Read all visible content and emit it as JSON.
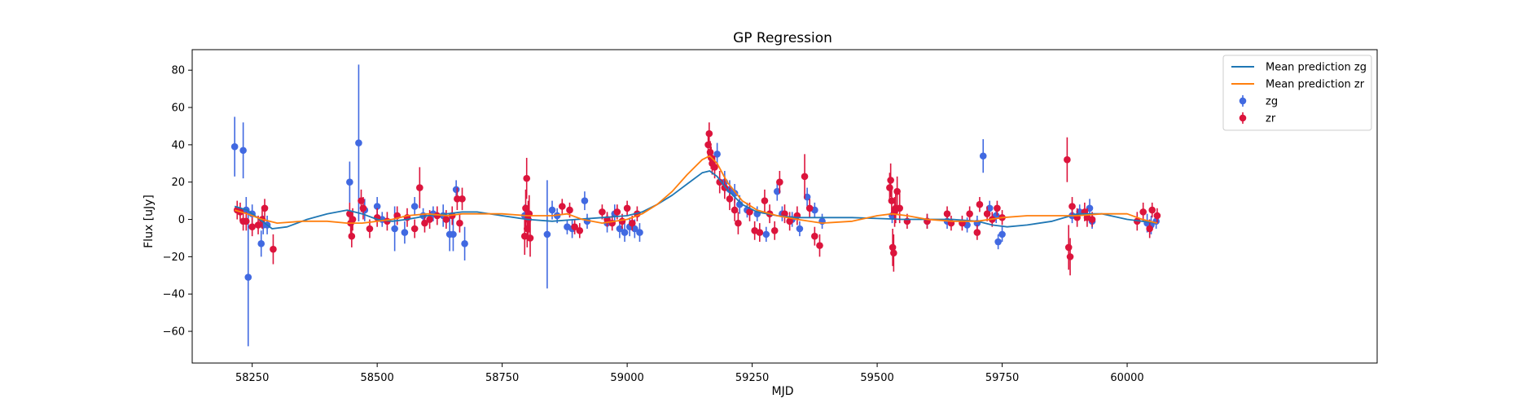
{
  "chart_data": {
    "type": "scatter",
    "title": "GP Regression",
    "xlabel": "MJD",
    "ylabel": "Flux [uJy]",
    "xlim": [
      58130,
      60500
    ],
    "ylim": [
      -77,
      91
    ],
    "xticks": [
      58250,
      58500,
      58750,
      59000,
      59250,
      59500,
      59750,
      60000
    ],
    "yticks": [
      -60,
      -40,
      -20,
      0,
      20,
      40,
      60,
      80
    ],
    "grid": false,
    "legend_position": "top-right",
    "legend": [
      {
        "label": "Mean prediction zg",
        "kind": "line",
        "color": "#1f77b4"
      },
      {
        "label": "Mean prediction zr",
        "kind": "line",
        "color": "#ff7f0e"
      },
      {
        "label": "zg",
        "kind": "errorbar",
        "color": "#4169e1"
      },
      {
        "label": "zr",
        "kind": "errorbar",
        "color": "#dc143c"
      }
    ],
    "lines": [
      {
        "name": "Mean prediction zg",
        "color": "#1f77b4",
        "x": [
          58215,
          58240,
          58265,
          58290,
          58320,
          58360,
          58400,
          58440,
          58470,
          58500,
          58530,
          58560,
          58600,
          58640,
          58670,
          58700,
          58750,
          58800,
          58850,
          58900,
          58950,
          59000,
          59030,
          59060,
          59090,
          59120,
          59150,
          59165,
          59180,
          59200,
          59230,
          59260,
          59300,
          59340,
          59400,
          59450,
          59500,
          59550,
          59600,
          59650,
          59700,
          59730,
          59760,
          59800,
          59850,
          59900,
          59950,
          60000,
          60030,
          60060
        ],
        "y": [
          7,
          5,
          0,
          -5,
          -4,
          0,
          3,
          5,
          3,
          0,
          -1,
          0,
          2,
          3,
          4,
          4,
          2,
          0,
          -1,
          0,
          1,
          2,
          4,
          8,
          13,
          19,
          25,
          26,
          23,
          16,
          8,
          4,
          2,
          1,
          1,
          1,
          0.5,
          0,
          0,
          0,
          -1,
          -3,
          -4,
          -3,
          -1,
          3,
          3,
          0,
          -1,
          -2
        ]
      },
      {
        "name": "Mean prediction zr",
        "color": "#ff7f0e",
        "x": [
          58215,
          58240,
          58270,
          58300,
          58350,
          58400,
          58440,
          58470,
          58500,
          58530,
          58560,
          58600,
          58640,
          58670,
          58700,
          58750,
          58800,
          58850,
          58880,
          58910,
          58950,
          59000,
          59030,
          59060,
          59090,
          59120,
          59150,
          59165,
          59180,
          59200,
          59230,
          59260,
          59300,
          59340,
          59390,
          59450,
          59500,
          59530,
          59560,
          59600,
          59650,
          59700,
          59750,
          59800,
          59850,
          59900,
          59950,
          60000,
          60030,
          60060
        ],
        "y": [
          5,
          3,
          0,
          -2,
          -1,
          -1,
          -2,
          -2,
          -1,
          0,
          2,
          3,
          2,
          3,
          3,
          3,
          2,
          2,
          3,
          0,
          -2,
          0,
          3,
          8,
          15,
          24,
          32,
          34,
          30,
          20,
          10,
          5,
          2,
          0,
          -2,
          -1,
          2,
          3,
          2,
          0,
          -1,
          -1,
          1,
          2,
          2,
          2,
          3,
          3,
          0,
          -2
        ]
      }
    ],
    "series": [
      {
        "name": "zg",
        "color": "#4169e1",
        "points": [
          [
            58215,
            39,
            16
          ],
          [
            58232,
            37,
            15
          ],
          [
            58238,
            5,
            7
          ],
          [
            58242,
            -31,
            37
          ],
          [
            58250,
            3,
            5
          ],
          [
            58268,
            -13,
            7
          ],
          [
            58272,
            -3,
            5
          ],
          [
            58280,
            -3,
            5
          ],
          [
            58445,
            20,
            11
          ],
          [
            58463,
            41,
            42
          ],
          [
            58475,
            5,
            6
          ],
          [
            58500,
            7,
            5
          ],
          [
            58510,
            0,
            4
          ],
          [
            58535,
            -5,
            12
          ],
          [
            58555,
            -7,
            6
          ],
          [
            58575,
            7,
            5
          ],
          [
            58592,
            2,
            4
          ],
          [
            58612,
            3,
            4
          ],
          [
            58632,
            2,
            6
          ],
          [
            58645,
            -8,
            9
          ],
          [
            58652,
            -8,
            9
          ],
          [
            58658,
            16,
            5
          ],
          [
            58675,
            -13,
            9
          ],
          [
            58795,
            2,
            6
          ],
          [
            58840,
            -8,
            29
          ],
          [
            58850,
            5,
            5
          ],
          [
            58860,
            2,
            4
          ],
          [
            58880,
            -4,
            4
          ],
          [
            58890,
            -5,
            5
          ],
          [
            58915,
            10,
            5
          ],
          [
            58920,
            -1,
            4
          ],
          [
            58960,
            -2,
            5
          ],
          [
            58975,
            3,
            5
          ],
          [
            58985,
            -5,
            5
          ],
          [
            58995,
            -7,
            5
          ],
          [
            59005,
            -4,
            5
          ],
          [
            59015,
            -5,
            5
          ],
          [
            59025,
            -7,
            5
          ],
          [
            59180,
            35,
            6
          ],
          [
            59195,
            20,
            6
          ],
          [
            59205,
            16,
            5
          ],
          [
            59215,
            14,
            5
          ],
          [
            59225,
            8,
            5
          ],
          [
            59240,
            5,
            4
          ],
          [
            59260,
            3,
            4
          ],
          [
            59278,
            -8,
            4
          ],
          [
            59300,
            15,
            5
          ],
          [
            59310,
            3,
            4
          ],
          [
            59330,
            0,
            4
          ],
          [
            59345,
            -5,
            4
          ],
          [
            59360,
            12,
            5
          ],
          [
            59375,
            5,
            4
          ],
          [
            59390,
            -1,
            4
          ],
          [
            59530,
            2,
            4
          ],
          [
            59600,
            -1,
            4
          ],
          [
            59640,
            -1,
            4
          ],
          [
            59680,
            -3,
            4
          ],
          [
            59700,
            -2,
            4
          ],
          [
            59712,
            34,
            9
          ],
          [
            59725,
            6,
            4
          ],
          [
            59738,
            2,
            4
          ],
          [
            59742,
            -12,
            4
          ],
          [
            59750,
            -8,
            4
          ],
          [
            59890,
            2,
            4
          ],
          [
            59905,
            4,
            4
          ],
          [
            59925,
            6,
            5
          ],
          [
            59930,
            -1,
            4
          ],
          [
            60040,
            -2,
            5
          ],
          [
            60048,
            -3,
            5
          ],
          [
            60058,
            -1,
            4
          ]
        ]
      },
      {
        "name": "zr",
        "color": "#dc143c",
        "points": [
          [
            58220,
            5,
            5
          ],
          [
            58226,
            4,
            5
          ],
          [
            58232,
            -1,
            5
          ],
          [
            58238,
            -1,
            5
          ],
          [
            58250,
            -4,
            5
          ],
          [
            58262,
            -3,
            5
          ],
          [
            58270,
            0,
            5
          ],
          [
            58275,
            6,
            5
          ],
          [
            58292,
            -16,
            8
          ],
          [
            58445,
            3,
            6
          ],
          [
            58447,
            -2,
            6
          ],
          [
            58449,
            -9,
            6
          ],
          [
            58451,
            0,
            6
          ],
          [
            58468,
            10,
            6
          ],
          [
            58472,
            6,
            6
          ],
          [
            58485,
            -5,
            5
          ],
          [
            58500,
            1,
            5
          ],
          [
            58520,
            -1,
            5
          ],
          [
            58540,
            2,
            5
          ],
          [
            58560,
            1,
            5
          ],
          [
            58575,
            -5,
            5
          ],
          [
            58585,
            17,
            11
          ],
          [
            58595,
            -2,
            5
          ],
          [
            58605,
            0,
            5
          ],
          [
            58620,
            2,
            5
          ],
          [
            58638,
            0,
            5
          ],
          [
            58650,
            2,
            5
          ],
          [
            58660,
            11,
            6
          ],
          [
            58665,
            -2,
            5
          ],
          [
            58670,
            11,
            6
          ],
          [
            58795,
            -9,
            10
          ],
          [
            58797,
            6,
            10
          ],
          [
            58799,
            22,
            11
          ],
          [
            58800,
            -5,
            10
          ],
          [
            58802,
            0,
            10
          ],
          [
            58804,
            3,
            10
          ],
          [
            58806,
            -10,
            10
          ],
          [
            58870,
            7,
            4
          ],
          [
            58885,
            5,
            4
          ],
          [
            58895,
            -4,
            4
          ],
          [
            58905,
            -6,
            4
          ],
          [
            58950,
            4,
            4
          ],
          [
            58960,
            0,
            4
          ],
          [
            58970,
            -2,
            4
          ],
          [
            58980,
            4,
            4
          ],
          [
            58990,
            -1,
            4
          ],
          [
            59000,
            6,
            4
          ],
          [
            59010,
            -2,
            4
          ],
          [
            59020,
            3,
            4
          ],
          [
            59162,
            40,
            6
          ],
          [
            59164,
            46,
            6
          ],
          [
            59166,
            36,
            6
          ],
          [
            59168,
            33,
            6
          ],
          [
            59170,
            30,
            6
          ],
          [
            59175,
            28,
            6
          ],
          [
            59185,
            20,
            6
          ],
          [
            59195,
            17,
            6
          ],
          [
            59205,
            11,
            6
          ],
          [
            59215,
            5,
            6
          ],
          [
            59222,
            -2,
            6
          ],
          [
            59245,
            4,
            5
          ],
          [
            59255,
            -6,
            5
          ],
          [
            59265,
            -7,
            5
          ],
          [
            59275,
            10,
            6
          ],
          [
            59285,
            3,
            5
          ],
          [
            59295,
            -6,
            5
          ],
          [
            59305,
            20,
            6
          ],
          [
            59315,
            3,
            5
          ],
          [
            59325,
            -1,
            5
          ],
          [
            59340,
            2,
            5
          ],
          [
            59355,
            23,
            12
          ],
          [
            59365,
            6,
            5
          ],
          [
            59375,
            -9,
            5
          ],
          [
            59385,
            -14,
            6
          ],
          [
            59525,
            17,
            8
          ],
          [
            59527,
            21,
            9
          ],
          [
            59529,
            10,
            8
          ],
          [
            59531,
            -15,
            10
          ],
          [
            59533,
            -18,
            10
          ],
          [
            59535,
            4,
            8
          ],
          [
            59537,
            6,
            8
          ],
          [
            59540,
            15,
            8
          ],
          [
            59545,
            6,
            8
          ],
          [
            59560,
            -1,
            4
          ],
          [
            59600,
            -1,
            4
          ],
          [
            59640,
            3,
            4
          ],
          [
            59648,
            -2,
            4
          ],
          [
            59670,
            -2,
            4
          ],
          [
            59685,
            3,
            4
          ],
          [
            59700,
            -7,
            4
          ],
          [
            59705,
            8,
            4
          ],
          [
            59720,
            3,
            4
          ],
          [
            59730,
            0,
            4
          ],
          [
            59740,
            6,
            4
          ],
          [
            59750,
            1,
            4
          ],
          [
            59880,
            32,
            12
          ],
          [
            59883,
            -15,
            12
          ],
          [
            59886,
            -20,
            10
          ],
          [
            59890,
            7,
            5
          ],
          [
            59900,
            1,
            5
          ],
          [
            59915,
            4,
            5
          ],
          [
            59920,
            1,
            5
          ],
          [
            59930,
            0,
            4
          ],
          [
            60020,
            -1,
            5
          ],
          [
            60032,
            4,
            5
          ],
          [
            60045,
            -5,
            5
          ],
          [
            60050,
            5,
            4
          ],
          [
            60060,
            2,
            4
          ]
        ]
      }
    ]
  }
}
